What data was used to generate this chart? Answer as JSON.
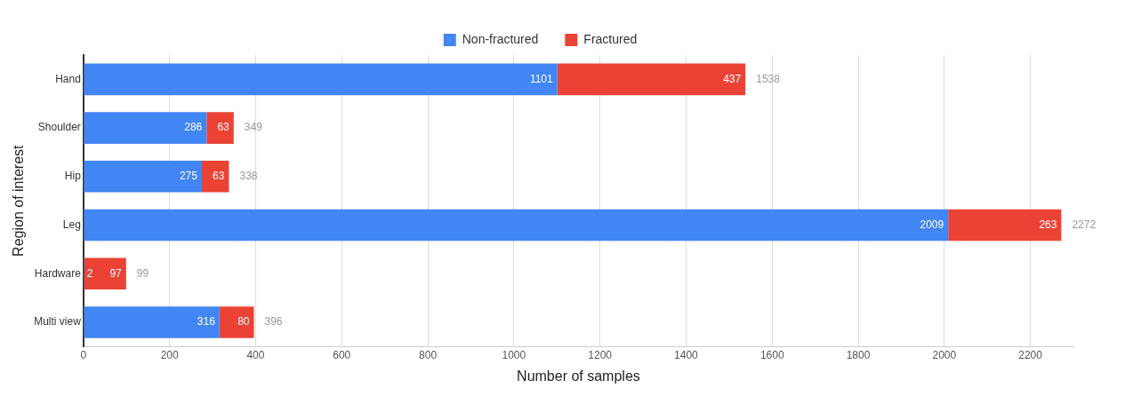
{
  "chart_data": {
    "type": "bar",
    "orientation": "horizontal",
    "stacked": true,
    "xlabel": "Number of samples",
    "ylabel": "Region of interest",
    "categories": [
      "Hand",
      "Shoulder",
      "Hip",
      "Leg",
      "Hardware",
      "Multi view"
    ],
    "series": [
      {
        "name": "Non-fractured",
        "color": "#4285f4",
        "values": [
          1101,
          286,
          275,
          2009,
          2,
          316
        ]
      },
      {
        "name": "Fractured",
        "color": "#ea4335",
        "values": [
          437,
          63,
          63,
          263,
          97,
          80
        ]
      }
    ],
    "totals": [
      "1538",
      "349",
      "338",
      "2272",
      "99",
      "396"
    ],
    "data_labels": true,
    "xlim": [
      0,
      2300
    ],
    "xticks": [
      0,
      200,
      400,
      600,
      800,
      1000,
      1200,
      1400,
      1600,
      1800,
      2000,
      2200
    ],
    "grid": "x",
    "legend": "top"
  }
}
